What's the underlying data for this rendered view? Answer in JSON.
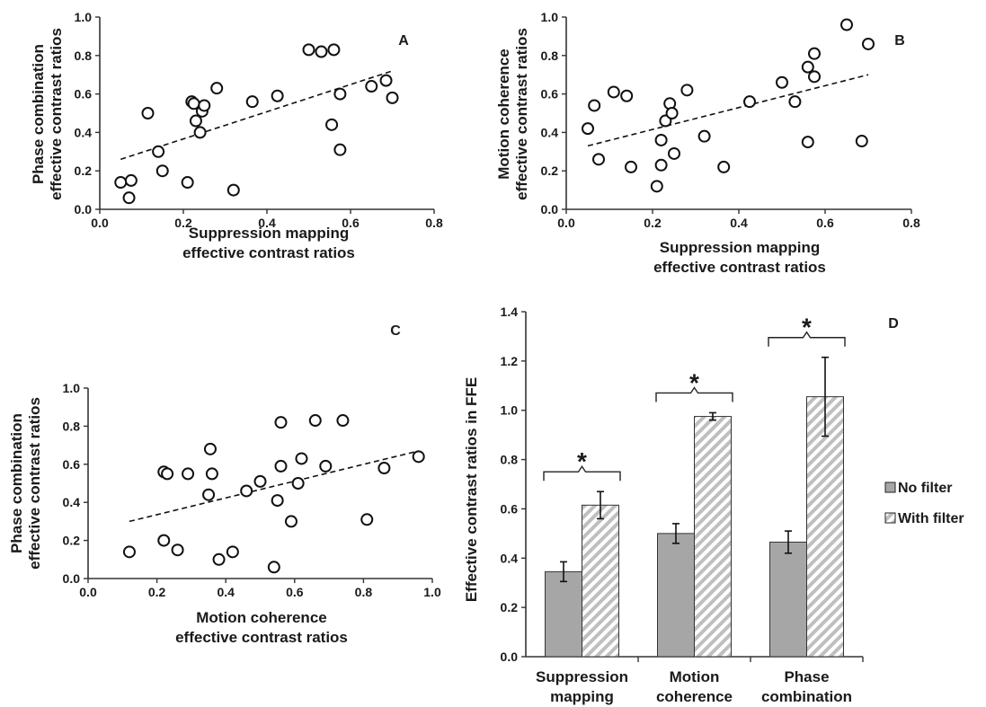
{
  "colors": {
    "no_filter_bar": "#a6a6a6",
    "with_filter_hatch": "#bfbfbf",
    "point_fill": "#ffffff",
    "ink": "#111111"
  },
  "chart_data": [
    {
      "panel": "A",
      "type": "scatter",
      "xlabel_line1": "Suppression mapping",
      "xlabel_line2": "effective contrast ratios",
      "ylabel_line1": "Phase combination",
      "ylabel_line2": "effective contrast ratios",
      "xlim": [
        0,
        0.8
      ],
      "ylim": [
        0,
        1.0
      ],
      "xticks": [
        "0.0",
        "0.2",
        "0.4",
        "0.6",
        "0.8"
      ],
      "yticks": [
        "0.0",
        "0.2",
        "0.4",
        "0.6",
        "0.8",
        "1.0"
      ],
      "trendline": {
        "style": "dashed",
        "x": [
          0.05,
          0.7
        ],
        "y": [
          0.26,
          0.72
        ]
      },
      "points": [
        [
          0.05,
          0.14
        ],
        [
          0.07,
          0.06
        ],
        [
          0.075,
          0.15
        ],
        [
          0.115,
          0.5
        ],
        [
          0.14,
          0.3
        ],
        [
          0.15,
          0.2
        ],
        [
          0.21,
          0.14
        ],
        [
          0.22,
          0.56
        ],
        [
          0.225,
          0.55
        ],
        [
          0.23,
          0.46
        ],
        [
          0.24,
          0.4
        ],
        [
          0.245,
          0.51
        ],
        [
          0.25,
          0.54
        ],
        [
          0.28,
          0.63
        ],
        [
          0.32,
          0.1
        ],
        [
          0.365,
          0.56
        ],
        [
          0.425,
          0.59
        ],
        [
          0.5,
          0.83
        ],
        [
          0.53,
          0.82
        ],
        [
          0.56,
          0.83
        ],
        [
          0.555,
          0.44
        ],
        [
          0.575,
          0.6
        ],
        [
          0.575,
          0.31
        ],
        [
          0.65,
          0.64
        ],
        [
          0.685,
          0.67
        ],
        [
          0.7,
          0.58
        ]
      ]
    },
    {
      "panel": "B",
      "type": "scatter",
      "xlabel_line1": "Suppression mapping",
      "xlabel_line2": "effective contrast ratios",
      "ylabel_line1": "Motion coherence",
      "ylabel_line2": "effective contrast ratios",
      "xlim": [
        0,
        0.8
      ],
      "ylim": [
        0,
        1.0
      ],
      "xticks": [
        "0.0",
        "0.2",
        "0.4",
        "0.6",
        "0.8"
      ],
      "yticks": [
        "0.0",
        "0.2",
        "0.4",
        "0.6",
        "0.8",
        "1.0"
      ],
      "trendline": {
        "style": "dashed",
        "x": [
          0.05,
          0.7
        ],
        "y": [
          0.33,
          0.7
        ]
      },
      "points": [
        [
          0.05,
          0.42
        ],
        [
          0.065,
          0.54
        ],
        [
          0.075,
          0.26
        ],
        [
          0.11,
          0.61
        ],
        [
          0.14,
          0.59
        ],
        [
          0.15,
          0.22
        ],
        [
          0.21,
          0.12
        ],
        [
          0.22,
          0.23
        ],
        [
          0.22,
          0.36
        ],
        [
          0.23,
          0.46
        ],
        [
          0.24,
          0.55
        ],
        [
          0.245,
          0.5
        ],
        [
          0.25,
          0.29
        ],
        [
          0.28,
          0.62
        ],
        [
          0.32,
          0.38
        ],
        [
          0.365,
          0.22
        ],
        [
          0.425,
          0.56
        ],
        [
          0.5,
          0.66
        ],
        [
          0.53,
          0.56
        ],
        [
          0.56,
          0.74
        ],
        [
          0.56,
          0.35
        ],
        [
          0.575,
          0.69
        ],
        [
          0.575,
          0.81
        ],
        [
          0.65,
          0.96
        ],
        [
          0.685,
          0.355
        ],
        [
          0.7,
          0.86
        ]
      ]
    },
    {
      "panel": "C",
      "type": "scatter",
      "xlabel_line1": "Motion coherence",
      "xlabel_line2": "effective contrast ratios",
      "ylabel_line1": "Phase combination",
      "ylabel_line2": "effective contrast ratios",
      "xlim": [
        0,
        1.0
      ],
      "ylim": [
        0,
        1.0
      ],
      "xticks": [
        "0.0",
        "0.2",
        "0.4",
        "0.6",
        "0.8",
        "1.0"
      ],
      "yticks": [
        "0.0",
        "0.2",
        "0.4",
        "0.6",
        "0.8",
        "1.0"
      ],
      "trendline": {
        "style": "dashed",
        "x": [
          0.12,
          0.96
        ],
        "y": [
          0.3,
          0.67
        ]
      },
      "points": [
        [
          0.12,
          0.14
        ],
        [
          0.22,
          0.2
        ],
        [
          0.22,
          0.56
        ],
        [
          0.23,
          0.55
        ],
        [
          0.26,
          0.15
        ],
        [
          0.29,
          0.55
        ],
        [
          0.35,
          0.44
        ],
        [
          0.355,
          0.68
        ],
        [
          0.36,
          0.55
        ],
        [
          0.38,
          0.1
        ],
        [
          0.42,
          0.14
        ],
        [
          0.46,
          0.46
        ],
        [
          0.5,
          0.51
        ],
        [
          0.54,
          0.06
        ],
        [
          0.55,
          0.41
        ],
        [
          0.56,
          0.82
        ],
        [
          0.56,
          0.59
        ],
        [
          0.59,
          0.3
        ],
        [
          0.61,
          0.5
        ],
        [
          0.62,
          0.63
        ],
        [
          0.66,
          0.83
        ],
        [
          0.69,
          0.59
        ],
        [
          0.74,
          0.83
        ],
        [
          0.81,
          0.31
        ],
        [
          0.86,
          0.58
        ],
        [
          0.96,
          0.64
        ]
      ]
    },
    {
      "panel": "D",
      "type": "bar",
      "ylabel": "Effective contrast ratios  in FFE",
      "ylim": [
        0,
        1.4
      ],
      "yticks": [
        "0.0",
        "0.2",
        "0.4",
        "0.6",
        "0.8",
        "1.0",
        "1.2",
        "1.4"
      ],
      "categories": [
        [
          "Suppression",
          "mapping"
        ],
        [
          "Motion",
          "coherence"
        ],
        [
          "Phase",
          "combination"
        ]
      ],
      "series": [
        {
          "name": "No filter",
          "pattern": "solid",
          "values": [
            0.345,
            0.5,
            0.465
          ],
          "errors": [
            0.04,
            0.04,
            0.045
          ]
        },
        {
          "name": "With filter",
          "pattern": "hatched",
          "values": [
            0.615,
            0.975,
            1.055
          ],
          "errors": [
            0.055,
            0.015,
            0.16
          ]
        }
      ],
      "significance": [
        "*",
        "*",
        "*"
      ],
      "legend_position": "right"
    }
  ]
}
